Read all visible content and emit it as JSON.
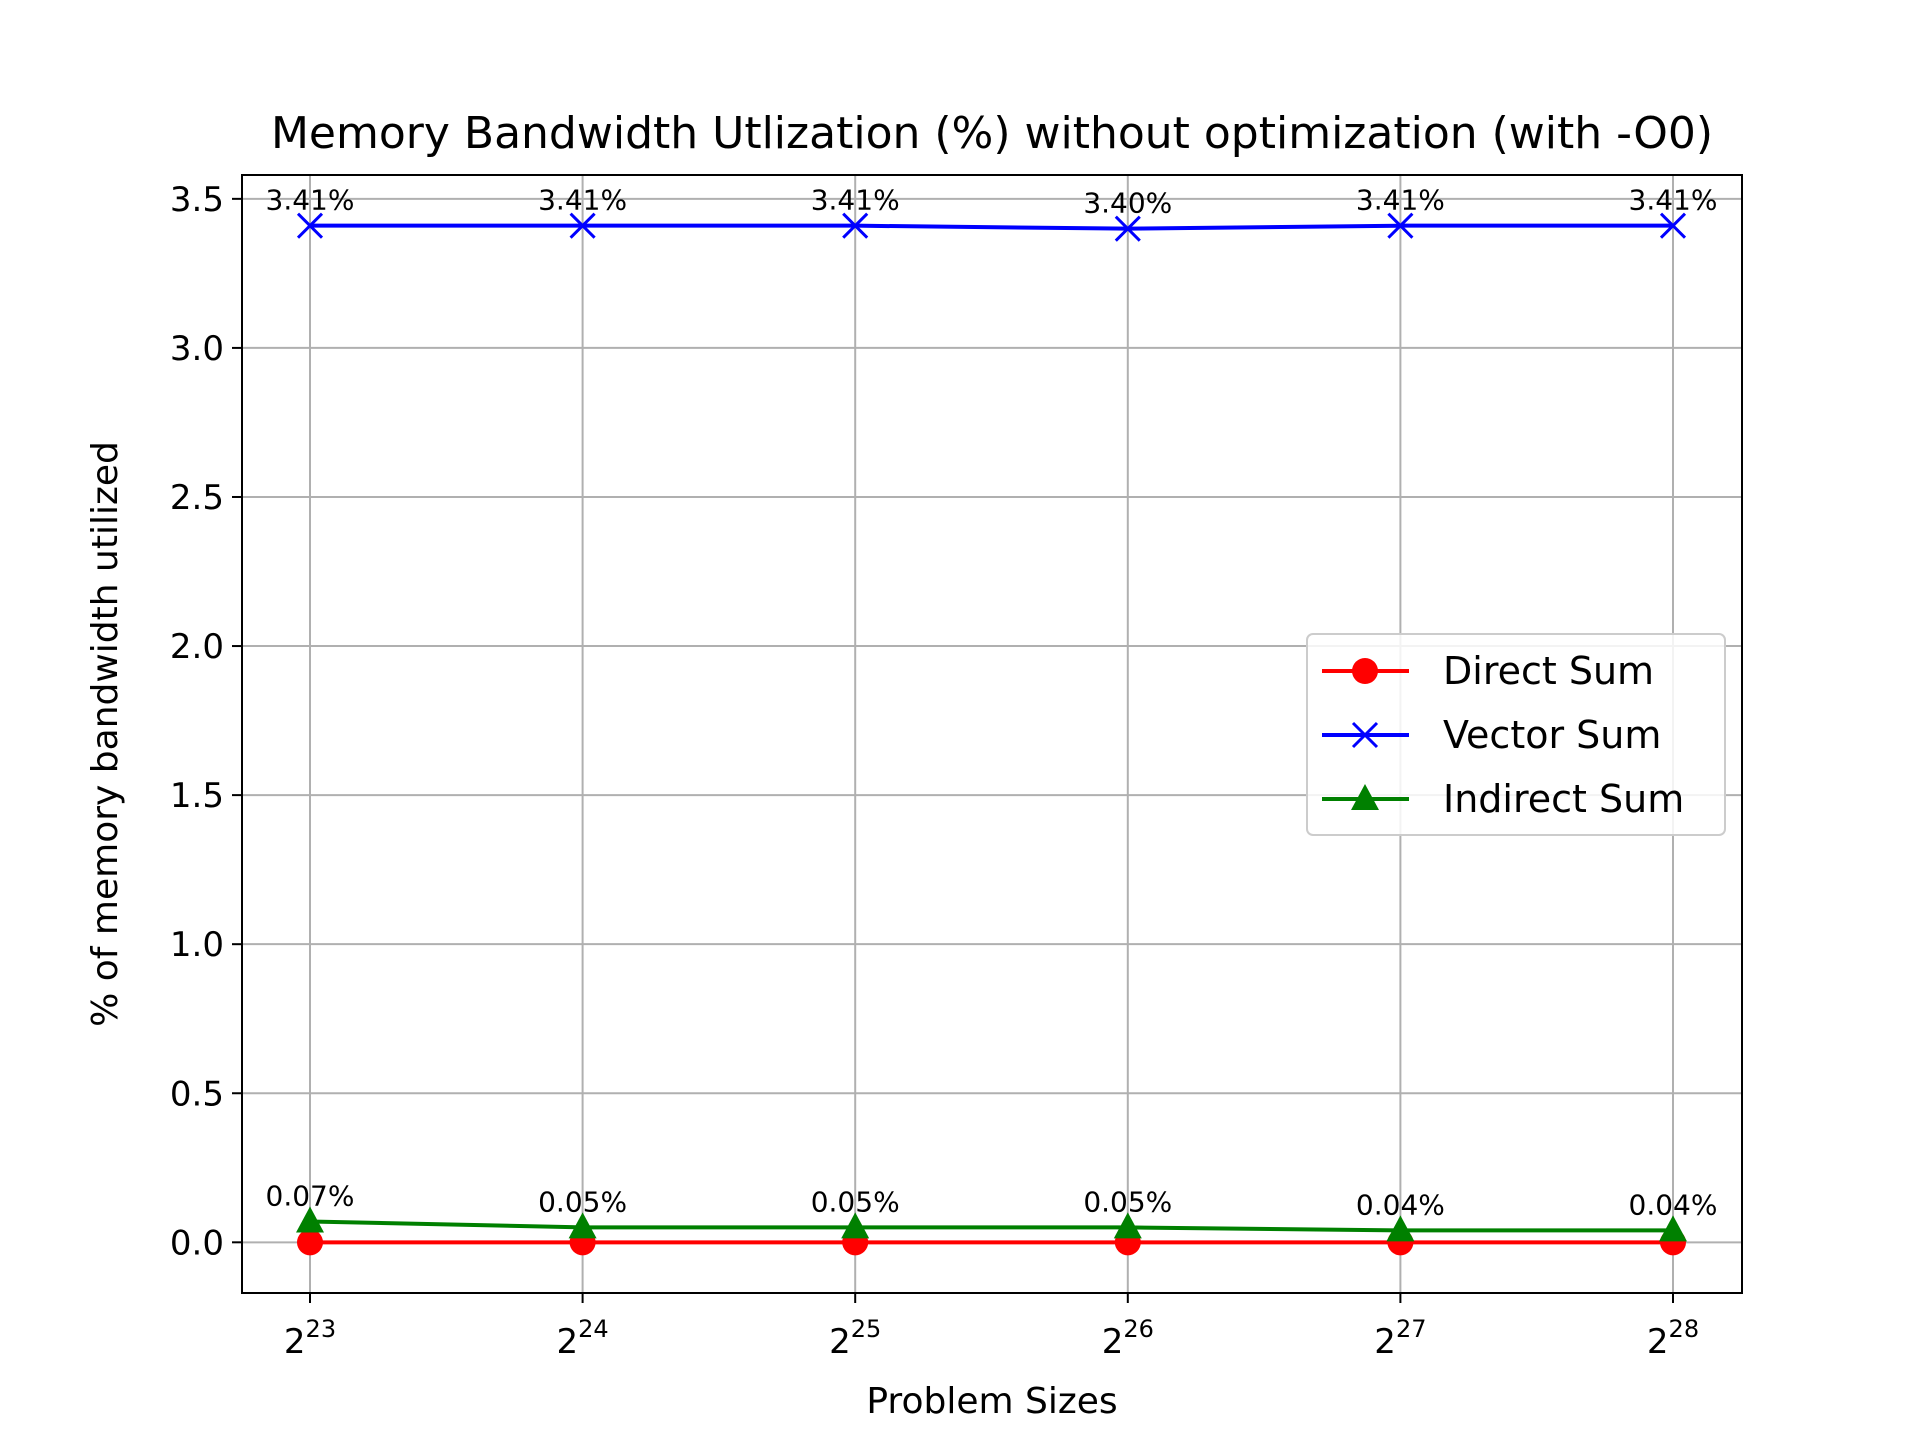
{
  "chart_data": {
    "type": "line",
    "title": "Memory Bandwidth Utlization (%) without optimization (with -O0)",
    "xlabel": "Problem Sizes",
    "ylabel": "% of memory bandwidth utilized",
    "x": [
      {
        "base": "2",
        "exp": "23"
      },
      {
        "base": "2",
        "exp": "24"
      },
      {
        "base": "2",
        "exp": "25"
      },
      {
        "base": "2",
        "exp": "26"
      },
      {
        "base": "2",
        "exp": "27"
      },
      {
        "base": "2",
        "exp": "28"
      }
    ],
    "ylim": [
      -0.17,
      3.58
    ],
    "yticks": [
      0.0,
      0.5,
      1.0,
      1.5,
      2.0,
      2.5,
      3.0,
      3.5
    ],
    "ytick_labels": [
      "0.0",
      "0.5",
      "1.0",
      "1.5",
      "2.0",
      "2.5",
      "3.0",
      "3.5"
    ],
    "grid": true,
    "legend_position": "center-right",
    "series": [
      {
        "name": "Direct Sum",
        "color": "#ff0000",
        "marker": "circle",
        "values": [
          0.0,
          0.0,
          0.0,
          0.0,
          0.0,
          0.0
        ],
        "labels": []
      },
      {
        "name": "Vector Sum",
        "color": "#0000ff",
        "marker": "x",
        "values": [
          3.41,
          3.41,
          3.41,
          3.4,
          3.41,
          3.41
        ],
        "labels": [
          "3.41%",
          "3.41%",
          "3.41%",
          "3.40%",
          "3.41%",
          "3.41%"
        ]
      },
      {
        "name": "Indirect Sum",
        "color": "#008000",
        "marker": "triangle",
        "values": [
          0.07,
          0.05,
          0.05,
          0.05,
          0.04,
          0.04
        ],
        "labels": [
          "0.07%",
          "0.05%",
          "0.05%",
          "0.05%",
          "0.04%",
          "0.04%"
        ]
      }
    ]
  }
}
